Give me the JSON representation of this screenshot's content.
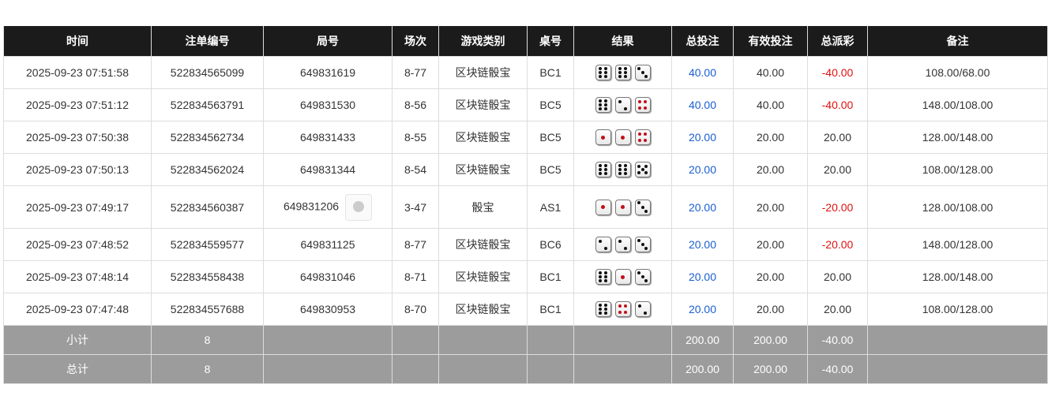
{
  "headers": [
    "时间",
    "注单编号",
    "局号",
    "场次",
    "游戏类别",
    "桌号",
    "结果",
    "总投注",
    "有效投注",
    "总派彩",
    "备注"
  ],
  "rows": [
    {
      "time": "2025-09-23 07:51:58",
      "bet_id": "522834565099",
      "round": "649831619",
      "session": "8-77",
      "game": "区块链骰宝",
      "table": "BC1",
      "dice": [
        6,
        6,
        3
      ],
      "bet": "40.00",
      "valid": "40.00",
      "payout": "-40.00",
      "note": "108.00/68.00"
    },
    {
      "time": "2025-09-23 07:51:12",
      "bet_id": "522834563791",
      "round": "649831530",
      "session": "8-56",
      "game": "区块链骰宝",
      "table": "BC5",
      "dice": [
        6,
        2,
        4
      ],
      "bet": "40.00",
      "valid": "40.00",
      "payout": "-40.00",
      "note": "148.00/108.00"
    },
    {
      "time": "2025-09-23 07:50:38",
      "bet_id": "522834562734",
      "round": "649831433",
      "session": "8-55",
      "game": "区块链骰宝",
      "table": "BC5",
      "dice": [
        1,
        1,
        4
      ],
      "bet": "20.00",
      "valid": "20.00",
      "payout": "20.00",
      "note": "128.00/148.00"
    },
    {
      "time": "2025-09-23 07:50:13",
      "bet_id": "522834562024",
      "round": "649831344",
      "session": "8-54",
      "game": "区块链骰宝",
      "table": "BC5",
      "dice": [
        6,
        6,
        5
      ],
      "bet": "20.00",
      "valid": "20.00",
      "payout": "20.00",
      "note": "108.00/128.00"
    },
    {
      "time": "2025-09-23 07:49:17",
      "bet_id": "522834560387",
      "round": "649831206",
      "session": "3-47",
      "game": "骰宝",
      "table": "AS1",
      "dice": [
        1,
        1,
        3
      ],
      "bet": "20.00",
      "valid": "20.00",
      "payout": "-20.00",
      "note": "128.00/108.00",
      "video": true
    },
    {
      "time": "2025-09-23 07:48:52",
      "bet_id": "522834559577",
      "round": "649831125",
      "session": "8-77",
      "game": "区块链骰宝",
      "table": "BC6",
      "dice": [
        2,
        2,
        3
      ],
      "bet": "20.00",
      "valid": "20.00",
      "payout": "-20.00",
      "note": "148.00/128.00"
    },
    {
      "time": "2025-09-23 07:48:14",
      "bet_id": "522834558438",
      "round": "649831046",
      "session": "8-71",
      "game": "区块链骰宝",
      "table": "BC1",
      "dice": [
        6,
        1,
        3
      ],
      "bet": "20.00",
      "valid": "20.00",
      "payout": "20.00",
      "note": "128.00/148.00"
    },
    {
      "time": "2025-09-23 07:47:48",
      "bet_id": "522834557688",
      "round": "649830953",
      "session": "8-70",
      "game": "区块链骰宝",
      "table": "BC1",
      "dice": [
        6,
        4,
        2
      ],
      "bet": "20.00",
      "valid": "20.00",
      "payout": "20.00",
      "note": "108.00/128.00"
    }
  ],
  "summary": [
    {
      "label": "小计",
      "count": "8",
      "bet": "200.00",
      "valid": "200.00",
      "payout": "-40.00"
    },
    {
      "label": "总计",
      "count": "8",
      "bet": "200.00",
      "valid": "200.00",
      "payout": "-40.00"
    }
  ],
  "colors": {
    "header_bg": "#1b1b1b",
    "bet_blue": "#1a5fd0",
    "loss_red": "#e01010",
    "summary_bg": "#9c9c9c"
  }
}
